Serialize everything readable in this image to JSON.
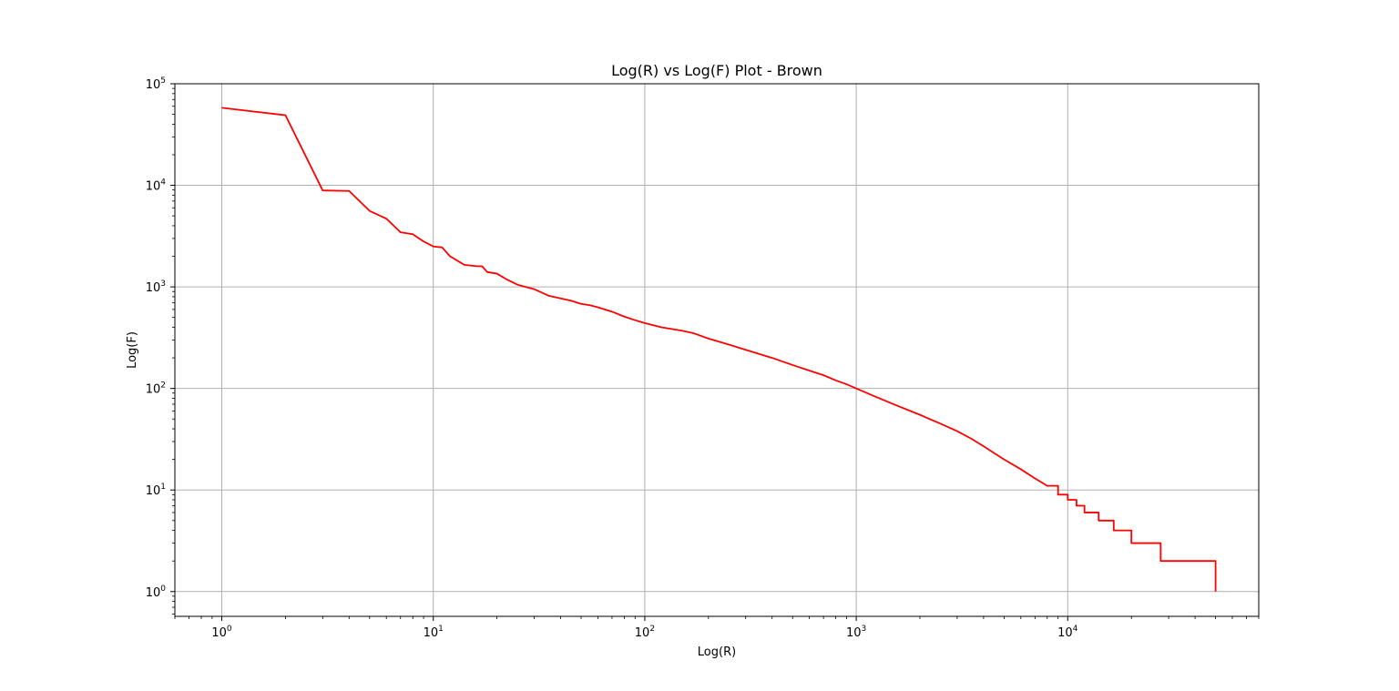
{
  "chart_data": {
    "type": "line",
    "title": "Log(R) vs Log(F) Plot - Brown",
    "xlabel": "Log(R)",
    "ylabel": "Log(F)",
    "xscale": "log",
    "yscale": "log",
    "xlim": [
      0.6,
      80000
    ],
    "ylim": [
      0.57,
      100000
    ],
    "grid": true,
    "x_ticks": [
      {
        "base": "10",
        "exp": "0",
        "value": 1
      },
      {
        "base": "10",
        "exp": "1",
        "value": 10
      },
      {
        "base": "10",
        "exp": "2",
        "value": 100
      },
      {
        "base": "10",
        "exp": "3",
        "value": 1000
      },
      {
        "base": "10",
        "exp": "4",
        "value": 10000
      }
    ],
    "y_ticks": [
      {
        "base": "10",
        "exp": "0",
        "value": 1
      },
      {
        "base": "10",
        "exp": "1",
        "value": 10
      },
      {
        "base": "10",
        "exp": "2",
        "value": 100
      },
      {
        "base": "10",
        "exp": "3",
        "value": 1000
      },
      {
        "base": "10",
        "exp": "4",
        "value": 10000
      },
      {
        "base": "10",
        "exp": "5",
        "value": 100000
      }
    ],
    "colors": {
      "line": "#ff0000",
      "grid": "#b0b0b0",
      "axes": "#000000",
      "background": "#ffffff"
    },
    "series": [
      {
        "x": [
          1,
          2,
          3,
          4,
          5,
          6,
          7,
          8,
          9,
          10,
          11,
          12,
          14,
          16,
          17,
          18,
          20,
          22,
          25,
          30,
          35,
          40,
          45,
          50,
          55,
          60,
          70,
          80,
          90,
          100,
          120,
          150,
          170,
          200,
          250,
          300,
          400,
          500,
          600,
          700,
          800,
          900,
          1000,
          1200,
          1500,
          2000,
          2500,
          3000,
          3500,
          4000,
          4500,
          5000,
          6000,
          7000,
          8000,
          9000,
          10000,
          11000,
          12000,
          14000,
          16500,
          20000,
          27500,
          50000
        ],
        "y": [
          58000,
          49000,
          8900,
          8800,
          5600,
          4700,
          3450,
          3300,
          2800,
          2500,
          2450,
          2000,
          1650,
          1600,
          1600,
          1400,
          1350,
          1200,
          1050,
          950,
          820,
          770,
          730,
          680,
          660,
          630,
          570,
          510,
          470,
          440,
          400,
          370,
          350,
          310,
          270,
          240,
          200,
          170,
          150,
          135,
          120,
          110,
          100,
          85,
          70,
          55,
          45,
          38,
          32,
          27,
          23,
          20,
          16,
          13,
          11,
          9,
          8,
          7,
          6,
          5,
          4,
          3,
          2,
          1
        ]
      }
    ]
  }
}
